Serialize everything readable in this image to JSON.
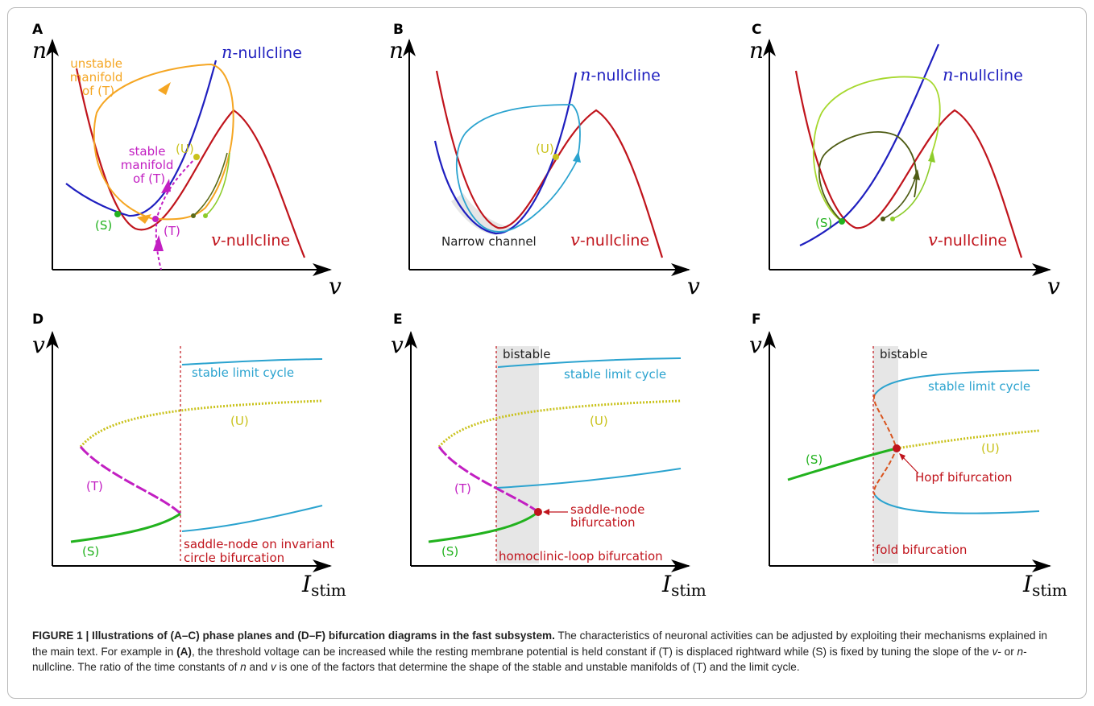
{
  "panels": {
    "A": {
      "label": "A",
      "yaxis": "n",
      "xaxis": "v",
      "n_nullcline": "-nullcline",
      "n_sym": "n",
      "v_nullcline": "-nullcline",
      "v_sym": "v",
      "unstable": [
        "unstable",
        "manifold",
        "of (T)"
      ],
      "stable": [
        "stable",
        "manifold",
        "of (T)"
      ],
      "U": "(U)",
      "S": "(S)",
      "T": "(T)"
    },
    "B": {
      "label": "B",
      "yaxis": "n",
      "xaxis": "v",
      "n_nullcline": "-nullcline",
      "n_sym": "n",
      "v_nullcline": "-nullcline",
      "v_sym": "v",
      "U": "(U)",
      "channel": "Narrow channel"
    },
    "C": {
      "label": "C",
      "yaxis": "n",
      "xaxis": "v",
      "n_nullcline": "-nullcline",
      "n_sym": "n",
      "v_nullcline": "-nullcline",
      "v_sym": "v",
      "S": "(S)"
    },
    "D": {
      "label": "D",
      "yaxis": "v",
      "xaxis": "I",
      "xaxis_sub": "stim",
      "limit": "stable limit cycle",
      "U": "(U)",
      "T": "(T)",
      "S": "(S)",
      "bif": [
        "saddle-node on invariant",
        "circle bifurcation"
      ]
    },
    "E": {
      "label": "E",
      "yaxis": "v",
      "xaxis": "I",
      "xaxis_sub": "stim",
      "bistable": "bistable",
      "limit": "stable limit cycle",
      "U": "(U)",
      "T": "(T)",
      "S": "(S)",
      "sn": [
        "saddle-node",
        "bifurcation"
      ],
      "homo": "homoclinic-loop bifurcation"
    },
    "F": {
      "label": "F",
      "yaxis": "v",
      "xaxis": "I",
      "xaxis_sub": "stim",
      "bistable": "bistable",
      "limit": "stable limit cycle",
      "U": "(U)",
      "S": "(S)",
      "hopf": "Hopf bifurcation",
      "fold": "fold bifurcation"
    }
  },
  "colors": {
    "n_nullcline": "#1f1fbf",
    "v_nullcline": "#c0141c",
    "unstable": "#f5a623",
    "stable": "#c21fc2",
    "U": "#c9c21b",
    "S": "#22b21e",
    "limit": "#2ba3cf",
    "fold_dash": "#d9541e",
    "shade": "#e6e6e6"
  },
  "caption": {
    "title": "FIGURE 1 | Illustrations of (A–C) phase planes and (D–F) bifurcation diagrams in the fast subsystem.",
    "s1": " The characteristics of neuronal activities can be adjusted by exploiting their mechanisms explained in the main text. For example in ",
    "ref": "(A)",
    "s2": ", the threshold voltage can be increased while the resting membrane potential is held constant if (T) is displaced rightward while (S) is fixed by tuning the slope of the ",
    "v": "v",
    "s3": "- or ",
    "n": "n",
    "s4": "-nullcline. The ratio of the time constants of ",
    "n2": "n",
    "s5": " and ",
    "v2": "v",
    "s6": " is one of the factors that determine the shape of the stable and unstable manifolds of (T) and the limit cycle."
  }
}
